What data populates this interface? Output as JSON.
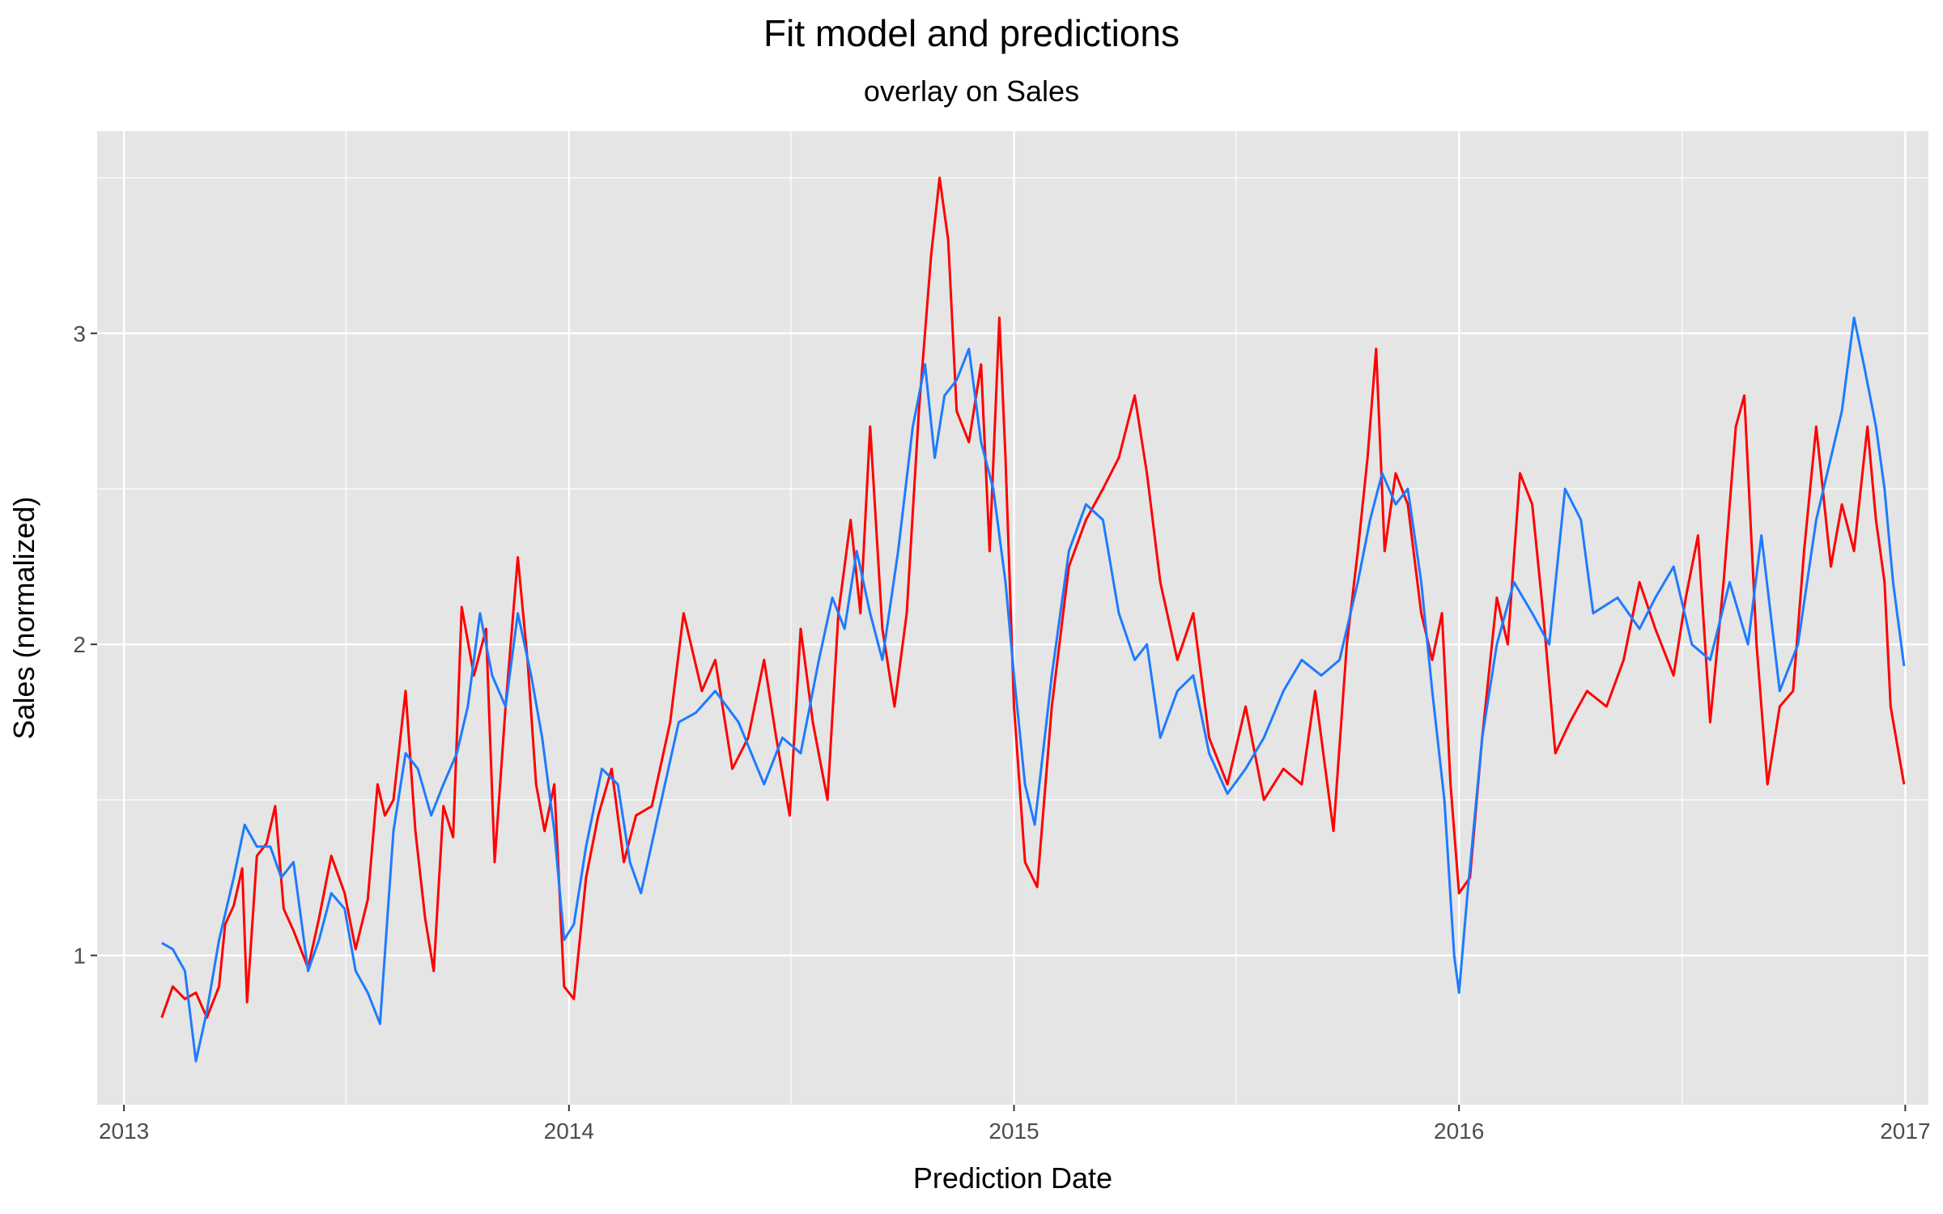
{
  "chart_data": {
    "type": "line",
    "title": "Fit model and predictions",
    "subtitle": "overlay on Sales",
    "xlabel": "Prediction Date",
    "ylabel": "Sales (normalized)",
    "x_ticks": [
      "2013",
      "2014",
      "2015",
      "2016",
      "2017"
    ],
    "y_ticks": [
      1,
      2,
      3
    ],
    "xlim": [
      "2012-12-10",
      "2017-01-20"
    ],
    "ylim": [
      0.52,
      3.65
    ],
    "grid": true,
    "legend": "none",
    "colors": {
      "panel": "#e5e5e5",
      "grid": "#ffffff",
      "sales": "#ff0000",
      "predictions": "#1e7bff"
    },
    "series": [
      {
        "color": "#ff0000",
        "points": [
          [
            "2013-02-01",
            0.8
          ],
          [
            "2013-02-10",
            0.9
          ],
          [
            "2013-02-20",
            0.86
          ],
          [
            "2013-03-01",
            0.88
          ],
          [
            "2013-03-10",
            0.8
          ],
          [
            "2013-03-20",
            0.9
          ],
          [
            "2013-03-25",
            1.1
          ],
          [
            "2013-04-01",
            1.16
          ],
          [
            "2013-04-08",
            1.28
          ],
          [
            "2013-04-12",
            0.85
          ],
          [
            "2013-04-20",
            1.32
          ],
          [
            "2013-04-28",
            1.36
          ],
          [
            "2013-05-05",
            1.48
          ],
          [
            "2013-05-12",
            1.15
          ],
          [
            "2013-05-20",
            1.08
          ],
          [
            "2013-06-01",
            0.96
          ],
          [
            "2013-06-10",
            1.12
          ],
          [
            "2013-06-20",
            1.32
          ],
          [
            "2013-07-01",
            1.2
          ],
          [
            "2013-07-10",
            1.02
          ],
          [
            "2013-07-20",
            1.18
          ],
          [
            "2013-07-28",
            1.55
          ],
          [
            "2013-08-03",
            1.45
          ],
          [
            "2013-08-10",
            1.5
          ],
          [
            "2013-08-20",
            1.85
          ],
          [
            "2013-08-28",
            1.4
          ],
          [
            "2013-09-05",
            1.12
          ],
          [
            "2013-09-12",
            0.95
          ],
          [
            "2013-09-20",
            1.48
          ],
          [
            "2013-09-28",
            1.38
          ],
          [
            "2013-10-05",
            2.12
          ],
          [
            "2013-10-15",
            1.9
          ],
          [
            "2013-10-25",
            2.05
          ],
          [
            "2013-11-01",
            1.3
          ],
          [
            "2013-11-10",
            1.8
          ],
          [
            "2013-11-20",
            2.28
          ],
          [
            "2013-11-28",
            1.95
          ],
          [
            "2013-12-05",
            1.55
          ],
          [
            "2013-12-12",
            1.4
          ],
          [
            "2013-12-20",
            1.55
          ],
          [
            "2013-12-28",
            0.9
          ],
          [
            "2014-01-05",
            0.86
          ],
          [
            "2014-01-15",
            1.25
          ],
          [
            "2014-01-25",
            1.45
          ],
          [
            "2014-02-05",
            1.6
          ],
          [
            "2014-02-15",
            1.3
          ],
          [
            "2014-02-25",
            1.45
          ],
          [
            "2014-03-10",
            1.48
          ],
          [
            "2014-03-25",
            1.75
          ],
          [
            "2014-04-05",
            2.1
          ],
          [
            "2014-04-20",
            1.85
          ],
          [
            "2014-05-01",
            1.95
          ],
          [
            "2014-05-15",
            1.6
          ],
          [
            "2014-05-28",
            1.7
          ],
          [
            "2014-06-10",
            1.95
          ],
          [
            "2014-06-20",
            1.7
          ],
          [
            "2014-07-01",
            1.45
          ],
          [
            "2014-07-10",
            2.05
          ],
          [
            "2014-07-20",
            1.75
          ],
          [
            "2014-08-01",
            1.5
          ],
          [
            "2014-08-10",
            2.1
          ],
          [
            "2014-08-20",
            2.4
          ],
          [
            "2014-08-28",
            2.1
          ],
          [
            "2014-09-05",
            2.7
          ],
          [
            "2014-09-15",
            2.05
          ],
          [
            "2014-09-25",
            1.8
          ],
          [
            "2014-10-05",
            2.1
          ],
          [
            "2014-10-15",
            2.75
          ],
          [
            "2014-10-25",
            3.25
          ],
          [
            "2014-11-01",
            3.5
          ],
          [
            "2014-11-08",
            3.3
          ],
          [
            "2014-11-15",
            2.75
          ],
          [
            "2014-11-25",
            2.65
          ],
          [
            "2014-12-05",
            2.9
          ],
          [
            "2014-12-12",
            2.3
          ],
          [
            "2014-12-20",
            3.05
          ],
          [
            "2014-12-25",
            2.6
          ],
          [
            "2015-01-01",
            1.8
          ],
          [
            "2015-01-10",
            1.3
          ],
          [
            "2015-01-20",
            1.22
          ],
          [
            "2015-02-01",
            1.8
          ],
          [
            "2015-02-15",
            2.25
          ],
          [
            "2015-03-01",
            2.4
          ],
          [
            "2015-03-15",
            2.5
          ],
          [
            "2015-03-28",
            2.6
          ],
          [
            "2015-04-10",
            2.8
          ],
          [
            "2015-04-20",
            2.55
          ],
          [
            "2015-05-01",
            2.2
          ],
          [
            "2015-05-15",
            1.95
          ],
          [
            "2015-05-28",
            2.1
          ],
          [
            "2015-06-10",
            1.7
          ],
          [
            "2015-06-25",
            1.55
          ],
          [
            "2015-07-10",
            1.8
          ],
          [
            "2015-07-25",
            1.5
          ],
          [
            "2015-08-10",
            1.6
          ],
          [
            "2015-08-25",
            1.55
          ],
          [
            "2015-09-05",
            1.85
          ],
          [
            "2015-09-20",
            1.4
          ],
          [
            "2015-10-01",
            2.0
          ],
          [
            "2015-10-10",
            2.3
          ],
          [
            "2015-10-18",
            2.6
          ],
          [
            "2015-10-25",
            2.95
          ],
          [
            "2015-11-01",
            2.3
          ],
          [
            "2015-11-10",
            2.55
          ],
          [
            "2015-11-20",
            2.45
          ],
          [
            "2015-12-01",
            2.1
          ],
          [
            "2015-12-10",
            1.95
          ],
          [
            "2015-12-18",
            2.1
          ],
          [
            "2015-12-25",
            1.55
          ],
          [
            "2016-01-01",
            1.2
          ],
          [
            "2016-01-10",
            1.25
          ],
          [
            "2016-01-20",
            1.7
          ],
          [
            "2016-02-01",
            2.15
          ],
          [
            "2016-02-10",
            2.0
          ],
          [
            "2016-02-20",
            2.55
          ],
          [
            "2016-03-01",
            2.45
          ],
          [
            "2016-03-10",
            2.1
          ],
          [
            "2016-03-20",
            1.65
          ],
          [
            "2016-04-01",
            1.75
          ],
          [
            "2016-04-15",
            1.85
          ],
          [
            "2016-05-01",
            1.8
          ],
          [
            "2016-05-15",
            1.95
          ],
          [
            "2016-05-28",
            2.2
          ],
          [
            "2016-06-10",
            2.05
          ],
          [
            "2016-06-25",
            1.9
          ],
          [
            "2016-07-05",
            2.15
          ],
          [
            "2016-07-15",
            2.35
          ],
          [
            "2016-07-25",
            1.75
          ],
          [
            "2016-08-05",
            2.2
          ],
          [
            "2016-08-15",
            2.7
          ],
          [
            "2016-08-22",
            2.8
          ],
          [
            "2016-09-01",
            2.0
          ],
          [
            "2016-09-10",
            1.55
          ],
          [
            "2016-09-20",
            1.8
          ],
          [
            "2016-10-01",
            1.85
          ],
          [
            "2016-10-10",
            2.3
          ],
          [
            "2016-10-20",
            2.7
          ],
          [
            "2016-11-01",
            2.25
          ],
          [
            "2016-11-10",
            2.45
          ],
          [
            "2016-11-20",
            2.3
          ],
          [
            "2016-12-01",
            2.7
          ],
          [
            "2016-12-08",
            2.4
          ],
          [
            "2016-12-15",
            2.2
          ],
          [
            "2016-12-20",
            1.8
          ],
          [
            "2016-12-31",
            1.55
          ]
        ]
      },
      {
        "color": "#1e7bff",
        "points": [
          [
            "2013-02-01",
            1.04
          ],
          [
            "2013-02-10",
            1.02
          ],
          [
            "2013-02-20",
            0.95
          ],
          [
            "2013-03-01",
            0.66
          ],
          [
            "2013-03-10",
            0.82
          ],
          [
            "2013-03-20",
            1.05
          ],
          [
            "2013-04-01",
            1.25
          ],
          [
            "2013-04-10",
            1.42
          ],
          [
            "2013-04-20",
            1.35
          ],
          [
            "2013-05-01",
            1.35
          ],
          [
            "2013-05-10",
            1.25
          ],
          [
            "2013-05-20",
            1.3
          ],
          [
            "2013-06-01",
            0.95
          ],
          [
            "2013-06-10",
            1.05
          ],
          [
            "2013-06-20",
            1.2
          ],
          [
            "2013-07-01",
            1.15
          ],
          [
            "2013-07-10",
            0.95
          ],
          [
            "2013-07-20",
            0.88
          ],
          [
            "2013-07-30",
            0.78
          ],
          [
            "2013-08-10",
            1.4
          ],
          [
            "2013-08-20",
            1.65
          ],
          [
            "2013-08-30",
            1.6
          ],
          [
            "2013-09-10",
            1.45
          ],
          [
            "2013-09-20",
            1.55
          ],
          [
            "2013-10-01",
            1.65
          ],
          [
            "2013-10-10",
            1.8
          ],
          [
            "2013-10-20",
            2.1
          ],
          [
            "2013-10-30",
            1.9
          ],
          [
            "2013-11-10",
            1.8
          ],
          [
            "2013-11-20",
            2.1
          ],
          [
            "2013-12-01",
            1.9
          ],
          [
            "2013-12-10",
            1.7
          ],
          [
            "2013-12-20",
            1.4
          ],
          [
            "2013-12-28",
            1.05
          ],
          [
            "2014-01-05",
            1.1
          ],
          [
            "2014-01-15",
            1.35
          ],
          [
            "2014-01-28",
            1.6
          ],
          [
            "2014-02-10",
            1.55
          ],
          [
            "2014-02-20",
            1.3
          ],
          [
            "2014-03-01",
            1.2
          ],
          [
            "2014-03-15",
            1.45
          ],
          [
            "2014-04-01",
            1.75
          ],
          [
            "2014-04-15",
            1.78
          ],
          [
            "2014-05-01",
            1.85
          ],
          [
            "2014-05-20",
            1.75
          ],
          [
            "2014-06-10",
            1.55
          ],
          [
            "2014-06-25",
            1.7
          ],
          [
            "2014-07-10",
            1.65
          ],
          [
            "2014-07-25",
            1.95
          ],
          [
            "2014-08-05",
            2.15
          ],
          [
            "2014-08-15",
            2.05
          ],
          [
            "2014-08-25",
            2.3
          ],
          [
            "2014-09-05",
            2.1
          ],
          [
            "2014-09-15",
            1.95
          ],
          [
            "2014-09-28",
            2.3
          ],
          [
            "2014-10-10",
            2.7
          ],
          [
            "2014-10-20",
            2.9
          ],
          [
            "2014-10-28",
            2.6
          ],
          [
            "2014-11-05",
            2.8
          ],
          [
            "2014-11-15",
            2.85
          ],
          [
            "2014-11-25",
            2.95
          ],
          [
            "2014-12-05",
            2.65
          ],
          [
            "2014-12-15",
            2.5
          ],
          [
            "2014-12-25",
            2.2
          ],
          [
            "2015-01-01",
            1.9
          ],
          [
            "2015-01-10",
            1.55
          ],
          [
            "2015-01-18",
            1.42
          ],
          [
            "2015-02-01",
            1.9
          ],
          [
            "2015-02-15",
            2.3
          ],
          [
            "2015-03-01",
            2.45
          ],
          [
            "2015-03-15",
            2.4
          ],
          [
            "2015-03-28",
            2.1
          ],
          [
            "2015-04-10",
            1.95
          ],
          [
            "2015-04-20",
            2.0
          ],
          [
            "2015-05-01",
            1.7
          ],
          [
            "2015-05-15",
            1.85
          ],
          [
            "2015-05-28",
            1.9
          ],
          [
            "2015-06-10",
            1.65
          ],
          [
            "2015-06-25",
            1.52
          ],
          [
            "2015-07-10",
            1.6
          ],
          [
            "2015-07-25",
            1.7
          ],
          [
            "2015-08-10",
            1.85
          ],
          [
            "2015-08-25",
            1.95
          ],
          [
            "2015-09-10",
            1.9
          ],
          [
            "2015-09-25",
            1.95
          ],
          [
            "2015-10-10",
            2.2
          ],
          [
            "2015-10-20",
            2.4
          ],
          [
            "2015-10-30",
            2.55
          ],
          [
            "2015-11-10",
            2.45
          ],
          [
            "2015-11-20",
            2.5
          ],
          [
            "2015-12-01",
            2.2
          ],
          [
            "2015-12-10",
            1.85
          ],
          [
            "2015-12-20",
            1.5
          ],
          [
            "2015-12-28",
            1.0
          ],
          [
            "2016-01-01",
            0.88
          ],
          [
            "2016-01-08",
            1.2
          ],
          [
            "2016-01-20",
            1.7
          ],
          [
            "2016-02-01",
            2.0
          ],
          [
            "2016-02-15",
            2.2
          ],
          [
            "2016-03-01",
            2.1
          ],
          [
            "2016-03-15",
            2.0
          ],
          [
            "2016-03-28",
            2.5
          ],
          [
            "2016-04-10",
            2.4
          ],
          [
            "2016-04-20",
            2.1
          ],
          [
            "2016-05-10",
            2.15
          ],
          [
            "2016-05-28",
            2.05
          ],
          [
            "2016-06-10",
            2.15
          ],
          [
            "2016-06-25",
            2.25
          ],
          [
            "2016-07-10",
            2.0
          ],
          [
            "2016-07-25",
            1.95
          ],
          [
            "2016-08-10",
            2.2
          ],
          [
            "2016-08-25",
            2.0
          ],
          [
            "2016-09-05",
            2.35
          ],
          [
            "2016-09-20",
            1.85
          ],
          [
            "2016-10-05",
            2.0
          ],
          [
            "2016-10-20",
            2.4
          ],
          [
            "2016-11-01",
            2.6
          ],
          [
            "2016-11-10",
            2.75
          ],
          [
            "2016-11-20",
            3.05
          ],
          [
            "2016-11-28",
            2.9
          ],
          [
            "2016-12-08",
            2.7
          ],
          [
            "2016-12-15",
            2.5
          ],
          [
            "2016-12-22",
            2.2
          ],
          [
            "2016-12-31",
            1.93
          ]
        ]
      }
    ]
  }
}
